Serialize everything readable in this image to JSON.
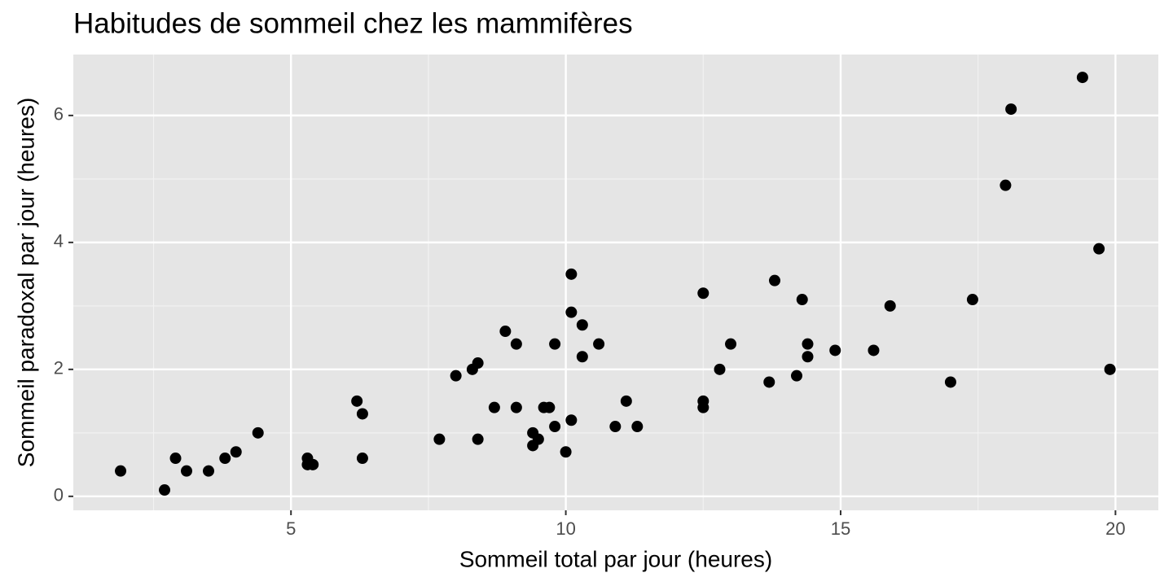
{
  "chart_data": {
    "type": "scatter",
    "title": "Habitudes de sommeil chez les mammifères",
    "x_label": "Sommeil total par jour (heures)",
    "y_label": "Sommeil paradoxal par jour (heures)",
    "color": "#000000",
    "x": [
      1.9,
      2.7,
      2.9,
      3.1,
      3.5,
      3.8,
      4.0,
      4.4,
      5.3,
      5.3,
      5.4,
      6.2,
      6.3,
      6.3,
      7.7,
      8.0,
      8.3,
      8.4,
      8.4,
      8.7,
      8.9,
      9.1,
      9.1,
      9.4,
      9.4,
      9.5,
      9.6,
      9.7,
      9.8,
      9.8,
      10.0,
      10.1,
      10.1,
      10.1,
      10.3,
      10.3,
      10.6,
      10.9,
      11.1,
      11.3,
      12.5,
      12.5,
      12.5,
      12.8,
      13.0,
      13.7,
      13.8,
      14.2,
      14.3,
      14.4,
      14.4,
      14.9,
      15.6,
      15.9,
      17.0,
      17.4,
      18.0,
      18.1,
      19.4,
      19.7,
      19.9
    ],
    "values": [
      0.4,
      0.1,
      0.6,
      0.4,
      0.4,
      0.6,
      0.7,
      1.0,
      0.6,
      0.5,
      0.5,
      1.5,
      1.3,
      0.6,
      0.9,
      1.9,
      2.0,
      2.1,
      0.9,
      1.4,
      2.6,
      2.4,
      1.4,
      1.0,
      0.8,
      0.9,
      1.4,
      1.4,
      1.1,
      2.4,
      0.7,
      3.5,
      2.9,
      1.2,
      2.7,
      2.2,
      2.4,
      1.1,
      1.5,
      1.1,
      3.2,
      1.5,
      1.4,
      2.0,
      2.4,
      1.8,
      3.4,
      1.9,
      3.1,
      2.4,
      2.2,
      2.3,
      2.3,
      3.0,
      1.8,
      3.1,
      4.9,
      6.1,
      6.6,
      3.9,
      2.0
    ],
    "xlim": [
      1.04,
      20.78
    ],
    "ylim": [
      -0.22,
      6.96
    ],
    "xticks": [
      5,
      10,
      15,
      20
    ],
    "yticks": [
      0,
      2,
      4,
      6
    ],
    "x_minor_grid": [
      2.5,
      7.5,
      12.5,
      17.5
    ],
    "y_minor_grid": [
      1,
      3,
      5
    ],
    "grid": true
  }
}
